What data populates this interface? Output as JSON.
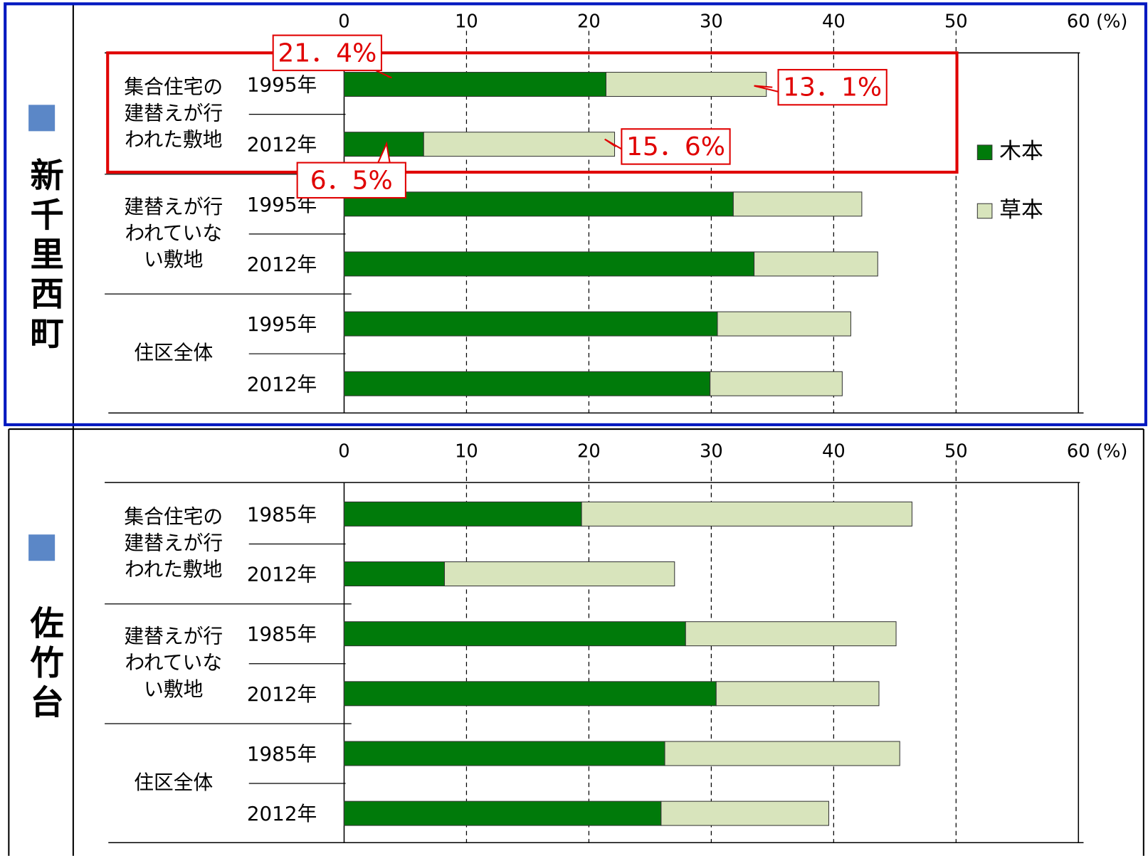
{
  "chart_data": [
    {
      "type": "bar",
      "orientation": "horizontal",
      "stacked": true,
      "title": "新千里西町",
      "groups": [
        [
          "集合住宅の",
          "建替えが行",
          "われた敷地"
        ],
        [
          "建替えが行",
          "われていな",
          "い敷地"
        ],
        [
          "住区全体"
        ]
      ],
      "categories": [
        "1995年",
        "2012年",
        "1995年",
        "2012年",
        "1995年",
        "2012年"
      ],
      "series": [
        {
          "name": "木本",
          "color": "#007a0a",
          "values": [
            21.4,
            6.5,
            31.8,
            33.5,
            30.5,
            29.9
          ],
          "value_labels": [
            "21．4%",
            "6．5%",
            null,
            null,
            null,
            null
          ]
        },
        {
          "name": "草本",
          "color": "#d8e4bc",
          "values": [
            13.1,
            15.6,
            10.5,
            10.1,
            10.9,
            10.8
          ],
          "value_labels": [
            "13．1%",
            "15．6%",
            null,
            null,
            null,
            null
          ]
        }
      ],
      "xlim": [
        0,
        60
      ],
      "xticks": [
        0,
        10,
        20,
        30,
        40,
        50,
        60
      ],
      "x_unit": "(%)",
      "grid": true,
      "legend": "right"
    },
    {
      "type": "bar",
      "orientation": "horizontal",
      "stacked": true,
      "title": "佐竹台",
      "groups": [
        [
          "集合住宅の",
          "建替えが行",
          "われた敷地"
        ],
        [
          "建替えが行",
          "われていな",
          "い敷地"
        ],
        [
          "住区全体"
        ]
      ],
      "categories": [
        "1985年",
        "2012年",
        "1985年",
        "2012年",
        "1985年",
        "2012年"
      ],
      "series": [
        {
          "color": "#007a0a",
          "values": [
            19.4,
            8.2,
            27.9,
            30.4,
            26.2,
            25.9
          ]
        },
        {
          "color": "#d8e4bc",
          "values": [
            27.0,
            18.8,
            17.2,
            13.3,
            19.2,
            13.7
          ]
        }
      ],
      "xlim": [
        0,
        60
      ],
      "xticks": [
        0,
        10,
        20,
        30,
        40,
        50,
        60
      ],
      "x_unit": "(%)",
      "grid": true
    }
  ]
}
